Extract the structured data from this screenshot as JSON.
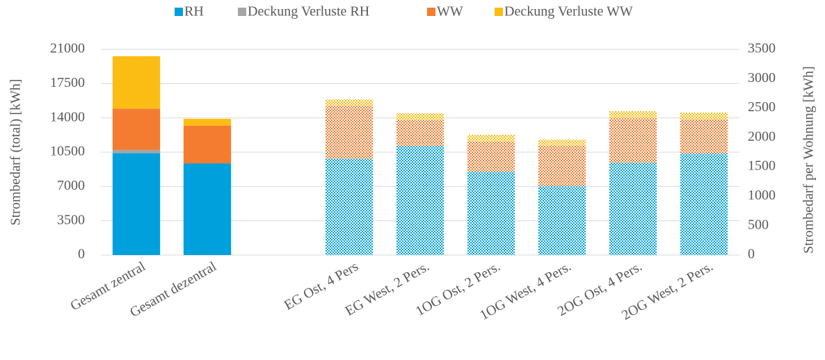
{
  "chart_data": {
    "type": "stacked_bar",
    "categories": [
      "Gesamt zentral",
      "Gesamt dezentral",
      null,
      "EG Ost, 4 Pers",
      "EG West, 2 Pers.",
      "1OG Ost, 2 Pers.",
      "1OG West, 4 Pers.",
      "2OG Ost, 4 Pers.",
      "2OG West, 2 Pers."
    ],
    "category_axes": [
      "y",
      "y",
      null,
      "y2",
      "y2",
      "y2",
      "y2",
      "y2",
      "y2"
    ],
    "series": [
      {
        "name": "RH",
        "color": "#00a0dc",
        "values": [
          10400,
          9360,
          null,
          1640,
          1856,
          1419,
          1171,
          1573,
          1726
        ]
      },
      {
        "name": "Deckung Verluste RH",
        "color": "#a5a5a5",
        "values": [
          350,
          0,
          null,
          0,
          0,
          0,
          0,
          0,
          0
        ]
      },
      {
        "name": "WW",
        "color": "#f47c30",
        "values": [
          4200,
          3840,
          null,
          900,
          438,
          508,
          685,
          756,
          580
        ]
      },
      {
        "name": "Deckung Verluste WW",
        "color": "#fbbc14",
        "values": [
          5350,
          710,
          null,
          107,
          118,
          119,
          107,
          119,
          118
        ]
      }
    ],
    "y_label": "Strombedarf (total) [kWh]",
    "y2_label": "Strombedarf per Wohnung [kWh]",
    "ylim": [
      0,
      21000
    ],
    "yticks": [
      0,
      3500,
      7000,
      10500,
      14000,
      17500,
      21000
    ],
    "y2lim": [
      0,
      3500
    ],
    "y2ticks": [
      0,
      500,
      1000,
      1500,
      2000,
      2500,
      3000,
      3500
    ],
    "grid": true,
    "legend": "top"
  }
}
